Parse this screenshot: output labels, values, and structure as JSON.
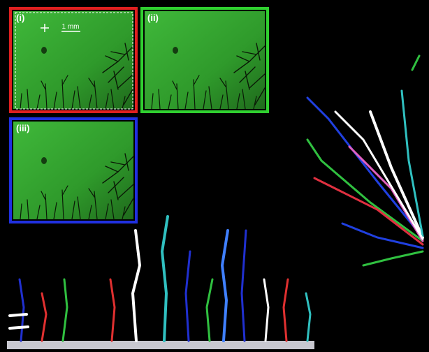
{
  "panels": [
    {
      "label": "(i)",
      "scale_bar": "1 mm"
    },
    {
      "label": "(ii)"
    },
    {
      "label": "(iii)"
    }
  ]
}
